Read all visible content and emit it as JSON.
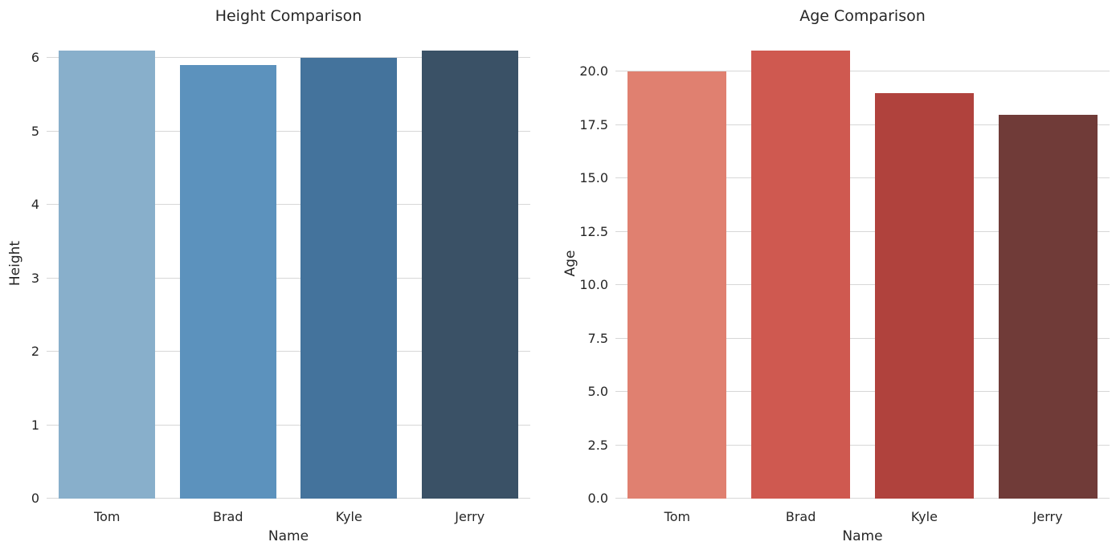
{
  "figure": {
    "background": "#ffffff",
    "grid_color": "#d7d7d7",
    "text_color": "#262626"
  },
  "chart_data": [
    {
      "type": "bar",
      "title": "Height Comparison",
      "xlabel": "Name",
      "ylabel": "Height",
      "categories": [
        "Tom",
        "Brad",
        "Kyle",
        "Jerry"
      ],
      "values": [
        6.1,
        5.9,
        6.0,
        6.1
      ],
      "bar_colors": [
        "#88AFCB",
        "#5C92BD",
        "#44739C",
        "#3A5166"
      ],
      "ylim": [
        0,
        6.405
      ],
      "yticks": [
        0,
        1,
        2,
        3,
        4,
        5,
        6
      ],
      "ytick_labels": [
        "0",
        "1",
        "2",
        "3",
        "4",
        "5",
        "6"
      ],
      "grid": "horizontal",
      "legend": "none"
    },
    {
      "type": "bar",
      "title": "Age Comparison",
      "xlabel": "Name",
      "ylabel": "Age",
      "categories": [
        "Tom",
        "Brad",
        "Kyle",
        "Jerry"
      ],
      "values": [
        20,
        21,
        19,
        18
      ],
      "bar_colors": [
        "#E08070",
        "#CF5950",
        "#B0423D",
        "#703B38"
      ],
      "ylim": [
        0,
        22.05
      ],
      "yticks": [
        0,
        2.5,
        5,
        7.5,
        10,
        12.5,
        15,
        17.5,
        20
      ],
      "ytick_labels": [
        "0.0",
        "2.5",
        "5.0",
        "7.5",
        "10.0",
        "12.5",
        "15.0",
        "17.5",
        "20.0"
      ],
      "grid": "horizontal",
      "legend": "none"
    }
  ]
}
